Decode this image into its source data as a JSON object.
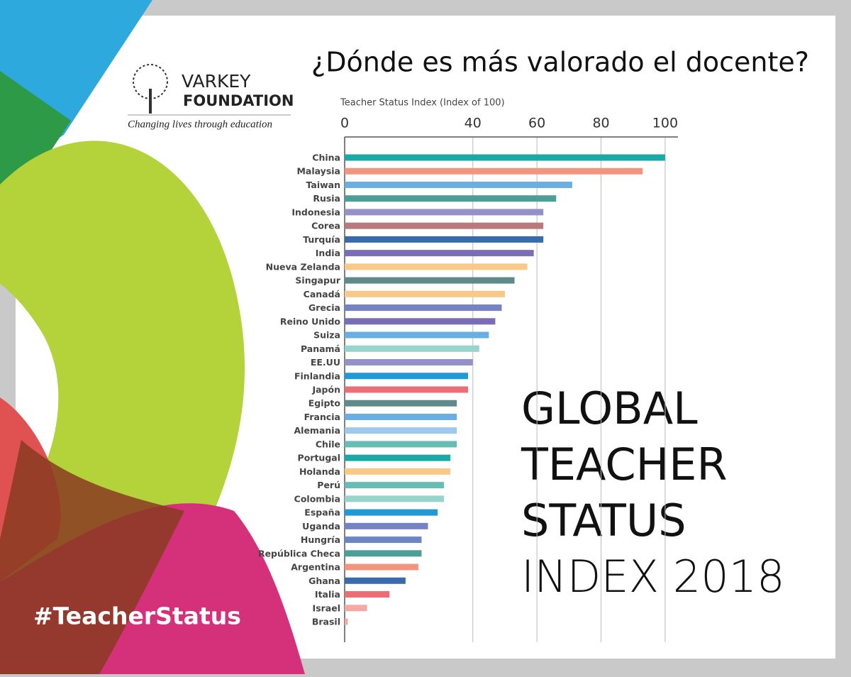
{
  "chart_data": {
    "type": "bar",
    "orientation": "horizontal",
    "title": "¿Dónde es más valorado el docente?",
    "x_label": "Teacher Status Index (Index of 100)",
    "categories": [
      "China",
      "Malaysia",
      "Taiwan",
      "Rusia",
      "Indonesia",
      "Corea",
      "Turquía",
      "India",
      "Nueva Zelanda",
      "Singapur",
      "Canadá",
      "Grecia",
      "Reino Unido",
      "Suiza",
      "Panamá",
      "EE.UU",
      "Finlandia",
      "Japón",
      "Egipto",
      "Francia",
      "Alemania",
      "Chile",
      "Portugal",
      "Holanda",
      "Perú",
      "Colombia",
      "España",
      "Uganda",
      "Hungría",
      "República Checa",
      "Argentina",
      "Ghana",
      "Italia",
      "Israel",
      "Brasil"
    ],
    "values": [
      100,
      93,
      71,
      66,
      62,
      62,
      62,
      59,
      57,
      53,
      50,
      49,
      47,
      45,
      42,
      40,
      38.5,
      38.5,
      35,
      35,
      35,
      35,
      33,
      33,
      31,
      31,
      29,
      26,
      24,
      24,
      23,
      19,
      14,
      7,
      1
    ],
    "colors": [
      "#1aa9a6",
      "#f0957f",
      "#6aafe0",
      "#4e9e98",
      "#9490c8",
      "#b87a7a",
      "#3a6aae",
      "#7a6db5",
      "#f9c98a",
      "#5f8a8a",
      "#f9c98a",
      "#7582c4",
      "#7a6db5",
      "#6aafe0",
      "#98d4cc",
      "#9490c8",
      "#1f9ad6",
      "#ea6e74",
      "#5f8a8a",
      "#6aafe0",
      "#9ec8ee",
      "#66bdb4",
      "#1aa9a6",
      "#f9c98a",
      "#66bdb4",
      "#98d4cc",
      "#1f9ad6",
      "#7582c4",
      "#6a86c4",
      "#4e9e98",
      "#f0957f",
      "#3a6aae",
      "#ea6e74",
      "#f4a9a6",
      "#f4a9a6"
    ],
    "xlim": [
      0,
      104
    ],
    "xticks": [
      0,
      40,
      60,
      80,
      100
    ],
    "grid": true
  },
  "logo": {
    "name": "VARKEY",
    "subname": "FOUNDATION",
    "tagline": "Changing lives through education"
  },
  "hashtag": "#TeacherStatus",
  "headline": [
    "GLOBAL",
    "TEACHER",
    "STATUS"
  ],
  "headline_light": "INDEX 2018"
}
